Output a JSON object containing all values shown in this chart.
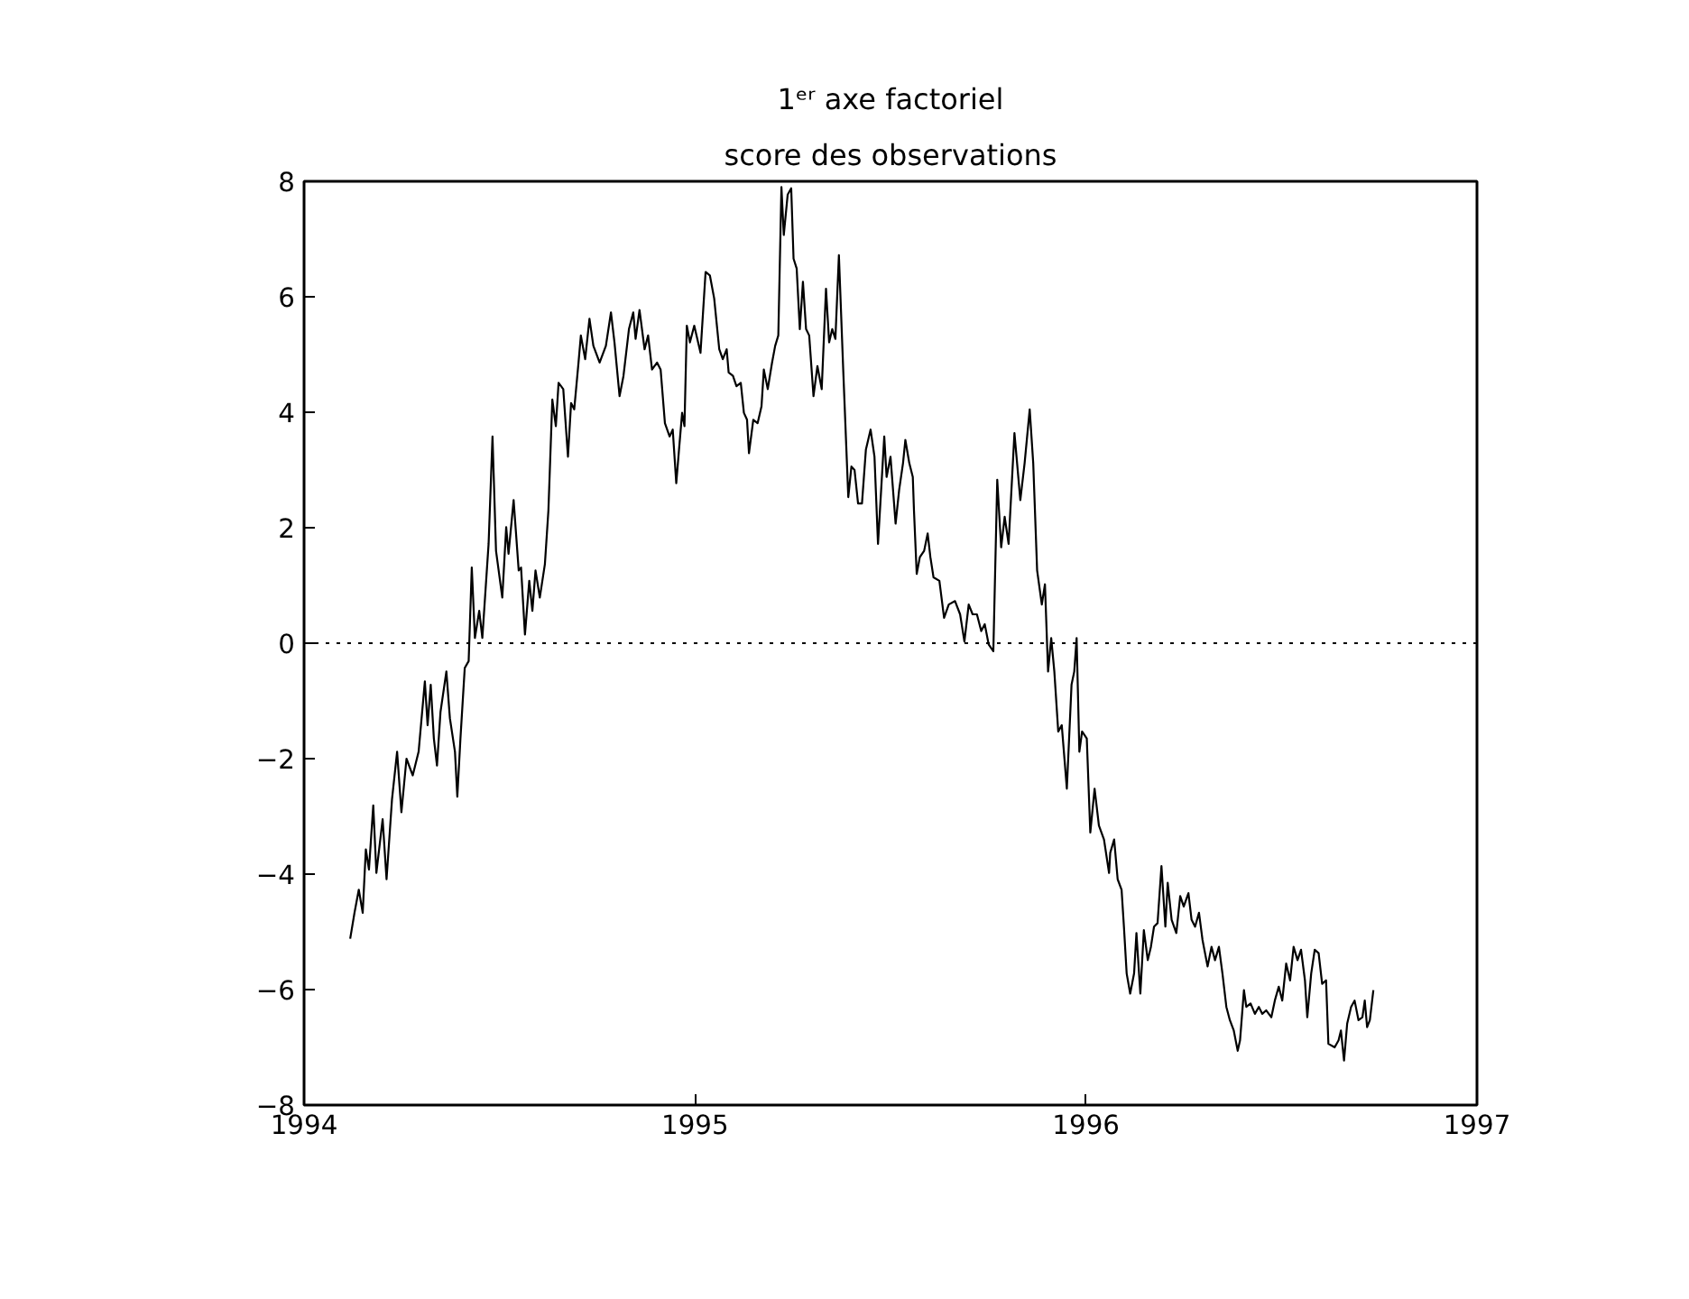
{
  "chart_data": {
    "type": "line",
    "title": "1ᵉʳ axe factoriel",
    "subtitle": "score des observations",
    "xlim": [
      1994,
      1997
    ],
    "xticks": [
      1994,
      1995,
      1996,
      1997
    ],
    "ylim": [
      -8,
      8
    ],
    "yticks": [
      -8,
      -6,
      -4,
      -2,
      0,
      2,
      4,
      6,
      8
    ],
    "marker": "none",
    "line_style": "solid",
    "ref_lines": [
      {
        "axis": "y",
        "value": 0,
        "line_style": "dotted",
        "color": "#000000"
      }
    ],
    "series": [
      {
        "color": "#000000",
        "x": [
          1994.118,
          1994.129,
          1994.14,
          1994.15,
          1994.158,
          1994.166,
          1994.177,
          1994.185,
          1994.201,
          1994.211,
          1994.225,
          1994.238,
          1994.249,
          1994.262,
          1994.278,
          1994.293,
          1994.309,
          1994.316,
          1994.324,
          1994.332,
          1994.34,
          1994.349,
          1994.364,
          1994.373,
          1994.386,
          1994.392,
          1994.4,
          1994.411,
          1994.421,
          1994.429,
          1994.437,
          1994.448,
          1994.456,
          1994.472,
          1994.482,
          1994.491,
          1994.507,
          1994.517,
          1994.523,
          1994.536,
          1994.549,
          1994.555,
          1994.565,
          1994.576,
          1994.584,
          1994.592,
          1994.603,
          1994.616,
          1994.625,
          1994.635,
          1994.644,
          1994.651,
          1994.663,
          1994.675,
          1994.683,
          1994.691,
          1994.702,
          1994.708,
          1994.719,
          1994.73,
          1994.74,
          1994.756,
          1994.772,
          1994.785,
          1994.794,
          1994.807,
          1994.817,
          1994.831,
          1994.842,
          1994.848,
          1994.858,
          1994.871,
          1994.88,
          1994.89,
          1994.903,
          1994.912,
          1994.923,
          1994.935,
          1994.943,
          1994.952,
          1994.959,
          1994.967,
          1994.973,
          1994.979,
          1994.987,
          1994.998,
          1995.014,
          1995.027,
          1995.038,
          1995.049,
          1995.062,
          1995.071,
          1995.081,
          1995.086,
          1995.097,
          1995.106,
          1995.117,
          1995.125,
          1995.133,
          1995.138,
          1995.149,
          1995.16,
          1995.17,
          1995.176,
          1995.186,
          1995.197,
          1995.205,
          1995.213,
          1995.221,
          1995.227,
          1995.237,
          1995.246,
          1995.252,
          1995.26,
          1995.268,
          1995.276,
          1995.284,
          1995.292,
          1995.303,
          1995.313,
          1995.324,
          1995.335,
          1995.343,
          1995.351,
          1995.359,
          1995.368,
          1995.379,
          1995.392,
          1995.4,
          1995.408,
          1995.417,
          1995.427,
          1995.437,
          1995.449,
          1995.459,
          1995.468,
          1995.484,
          1995.49,
          1995.5,
          1995.513,
          1995.522,
          1995.532,
          1995.538,
          1995.548,
          1995.557,
          1995.56,
          1995.567,
          1995.575,
          1995.586,
          1995.595,
          1995.602,
          1995.61,
          1995.625,
          1995.637,
          1995.649,
          1995.665,
          1995.678,
          1995.689,
          1995.7,
          1995.71,
          1995.721,
          1995.732,
          1995.741,
          1995.751,
          1995.763,
          1995.773,
          1995.783,
          1995.792,
          1995.802,
          1995.817,
          1995.832,
          1995.843,
          1995.856,
          1995.865,
          1995.875,
          1995.887,
          1995.895,
          1995.903,
          1995.911,
          1995.919,
          1995.929,
          1995.938,
          1995.951,
          1995.963,
          1995.97,
          1995.976,
          1995.983,
          1995.99,
          1996.002,
          1996.011,
          1996.022,
          1996.033,
          1996.046,
          1996.059,
          1996.062,
          1996.072,
          1996.081,
          1996.091,
          1996.097,
          1996.104,
          1996.113,
          1996.123,
          1996.129,
          1996.139,
          1996.148,
          1996.158,
          1996.166,
          1996.174,
          1996.183,
          1996.193,
          1996.203,
          1996.209,
          1996.219,
          1996.231,
          1996.241,
          1996.25,
          1996.262,
          1996.27,
          1996.279,
          1996.289,
          1996.298,
          1996.311,
          1996.321,
          1996.33,
          1996.34,
          1996.349,
          1996.359,
          1996.368,
          1996.378,
          1996.388,
          1996.394,
          1996.404,
          1996.41,
          1996.421,
          1996.432,
          1996.442,
          1996.451,
          1996.461,
          1996.474,
          1996.483,
          1996.493,
          1996.502,
          1996.512,
          1996.522,
          1996.531,
          1996.541,
          1996.55,
          1996.56,
          1996.566,
          1996.576,
          1996.585,
          1996.595,
          1996.604,
          1996.614,
          1996.62,
          1996.636,
          1996.646,
          1996.652,
          1996.66,
          1996.668,
          1996.678,
          1996.687,
          1996.697,
          1996.707,
          1996.713,
          1996.719,
          1996.726,
          1996.735
        ],
        "values": [
          -5.12,
          -4.67,
          -4.27,
          -4.67,
          -3.57,
          -3.92,
          -2.81,
          -3.98,
          -3.05,
          -4.09,
          -2.7,
          -1.88,
          -2.93,
          -2.0,
          -2.29,
          -1.88,
          -0.66,
          -1.42,
          -0.72,
          -1.65,
          -2.12,
          -1.19,
          -0.49,
          -1.3,
          -1.88,
          -2.66,
          -1.65,
          -0.43,
          -0.31,
          1.31,
          0.09,
          0.56,
          0.09,
          1.72,
          3.58,
          1.6,
          0.79,
          2.01,
          1.55,
          2.48,
          1.26,
          1.31,
          0.15,
          1.08,
          0.56,
          1.26,
          0.79,
          1.37,
          2.3,
          4.22,
          3.76,
          4.51,
          4.4,
          3.23,
          4.16,
          4.05,
          4.86,
          5.33,
          4.92,
          5.62,
          5.15,
          4.86,
          5.15,
          5.73,
          5.21,
          4.28,
          4.63,
          5.44,
          5.73,
          5.27,
          5.77,
          5.09,
          5.33,
          4.74,
          4.86,
          4.74,
          3.81,
          3.58,
          3.7,
          2.77,
          3.35,
          3.99,
          3.76,
          5.5,
          5.21,
          5.5,
          5.03,
          6.43,
          6.37,
          5.97,
          5.09,
          4.92,
          5.09,
          4.69,
          4.63,
          4.45,
          4.51,
          3.99,
          3.87,
          3.29,
          3.87,
          3.81,
          4.1,
          4.74,
          4.4,
          4.86,
          5.15,
          5.33,
          7.9,
          7.07,
          7.77,
          7.88,
          6.66,
          6.49,
          5.44,
          6.26,
          5.44,
          5.33,
          4.28,
          4.8,
          4.4,
          6.14,
          5.21,
          5.44,
          5.27,
          6.72,
          4.74,
          2.53,
          3.06,
          3.0,
          2.42,
          2.42,
          3.35,
          3.7,
          3.23,
          1.72,
          3.58,
          2.88,
          3.23,
          2.07,
          2.65,
          3.12,
          3.52,
          3.12,
          2.88,
          2.3,
          1.2,
          1.49,
          1.6,
          1.9,
          1.49,
          1.14,
          1.08,
          0.44,
          0.67,
          0.73,
          0.5,
          0.03,
          0.67,
          0.5,
          0.5,
          0.21,
          0.33,
          -0.02,
          -0.14,
          2.83,
          1.66,
          2.19,
          1.72,
          3.64,
          2.48,
          3.12,
          4.05,
          3.12,
          1.26,
          0.67,
          1.02,
          -0.49,
          0.09,
          -0.49,
          -1.53,
          -1.42,
          -2.52,
          -0.72,
          -0.49,
          0.09,
          -1.88,
          -1.53,
          -1.65,
          -3.28,
          -2.52,
          -3.16,
          -3.4,
          -3.98,
          -3.63,
          -3.4,
          -4.09,
          -4.27,
          -4.91,
          -5.72,
          -6.07,
          -5.72,
          -5.02,
          -6.07,
          -4.97,
          -5.49,
          -5.26,
          -4.91,
          -4.85,
          -3.86,
          -4.91,
          -4.15,
          -4.79,
          -5.02,
          -4.38,
          -4.56,
          -4.33,
          -4.79,
          -4.91,
          -4.67,
          -5.14,
          -5.6,
          -5.26,
          -5.49,
          -5.26,
          -5.72,
          -6.3,
          -6.53,
          -6.71,
          -7.06,
          -6.88,
          -6.01,
          -6.3,
          -6.24,
          -6.42,
          -6.3,
          -6.42,
          -6.36,
          -6.48,
          -6.19,
          -5.95,
          -6.19,
          -5.55,
          -5.84,
          -5.26,
          -5.49,
          -5.31,
          -5.84,
          -6.48,
          -5.72,
          -5.31,
          -5.37,
          -5.9,
          -5.84,
          -6.94,
          -7.0,
          -6.88,
          -6.71,
          -7.23,
          -6.59,
          -6.3,
          -6.19,
          -6.53,
          -6.48,
          -6.19,
          -6.65,
          -6.53,
          -6.01
        ]
      }
    ]
  }
}
